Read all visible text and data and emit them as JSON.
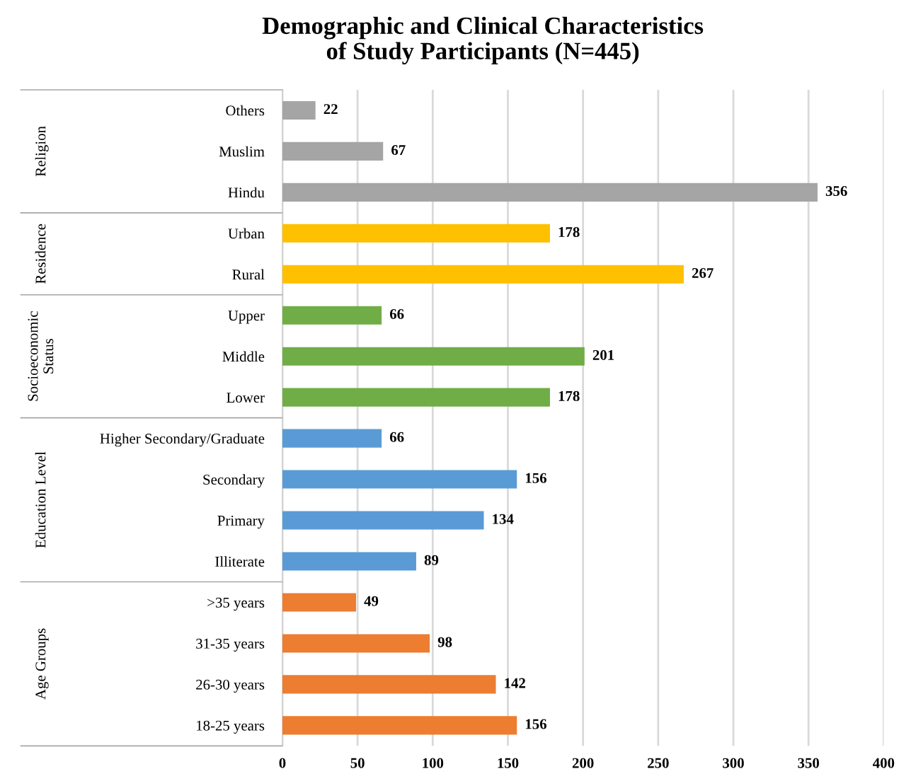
{
  "chart_data": {
    "type": "bar",
    "orientation": "horizontal",
    "title": "Demographic and Clinical Characteristics of Study Participants (N=445)",
    "categories": [
      "Others",
      "Muslim",
      "Hindu",
      "Urban",
      "Rural",
      "Upper",
      "Middle",
      "Lower",
      "Higher Secondary/Graduate",
      "Secondary",
      "Primary",
      "Illiterate",
      ">35 years",
      "31-35 years",
      "26-30 years",
      "18-25 years"
    ],
    "values": [
      22,
      67,
      356,
      178,
      267,
      66,
      201,
      178,
      66,
      156,
      134,
      89,
      49,
      98,
      142,
      156
    ],
    "colors": [
      "#a5a5a5",
      "#a5a5a5",
      "#a5a5a5",
      "#ffc000",
      "#ffc000",
      "#70ad47",
      "#70ad47",
      "#70ad47",
      "#5b9bd5",
      "#5b9bd5",
      "#5b9bd5",
      "#5b9bd5",
      "#ed7d31",
      "#ed7d31",
      "#ed7d31",
      "#ed7d31"
    ],
    "annotations": [
      "Religion",
      "Residence",
      "Socioeconomic Status",
      "Education Level",
      "Age Groups"
    ],
    "xlim": [
      0,
      400
    ],
    "xticks": [
      0,
      50,
      100,
      150,
      200,
      250,
      300,
      350,
      400
    ],
    "grid": "x",
    "data_labels": true,
    "legend": false
  }
}
